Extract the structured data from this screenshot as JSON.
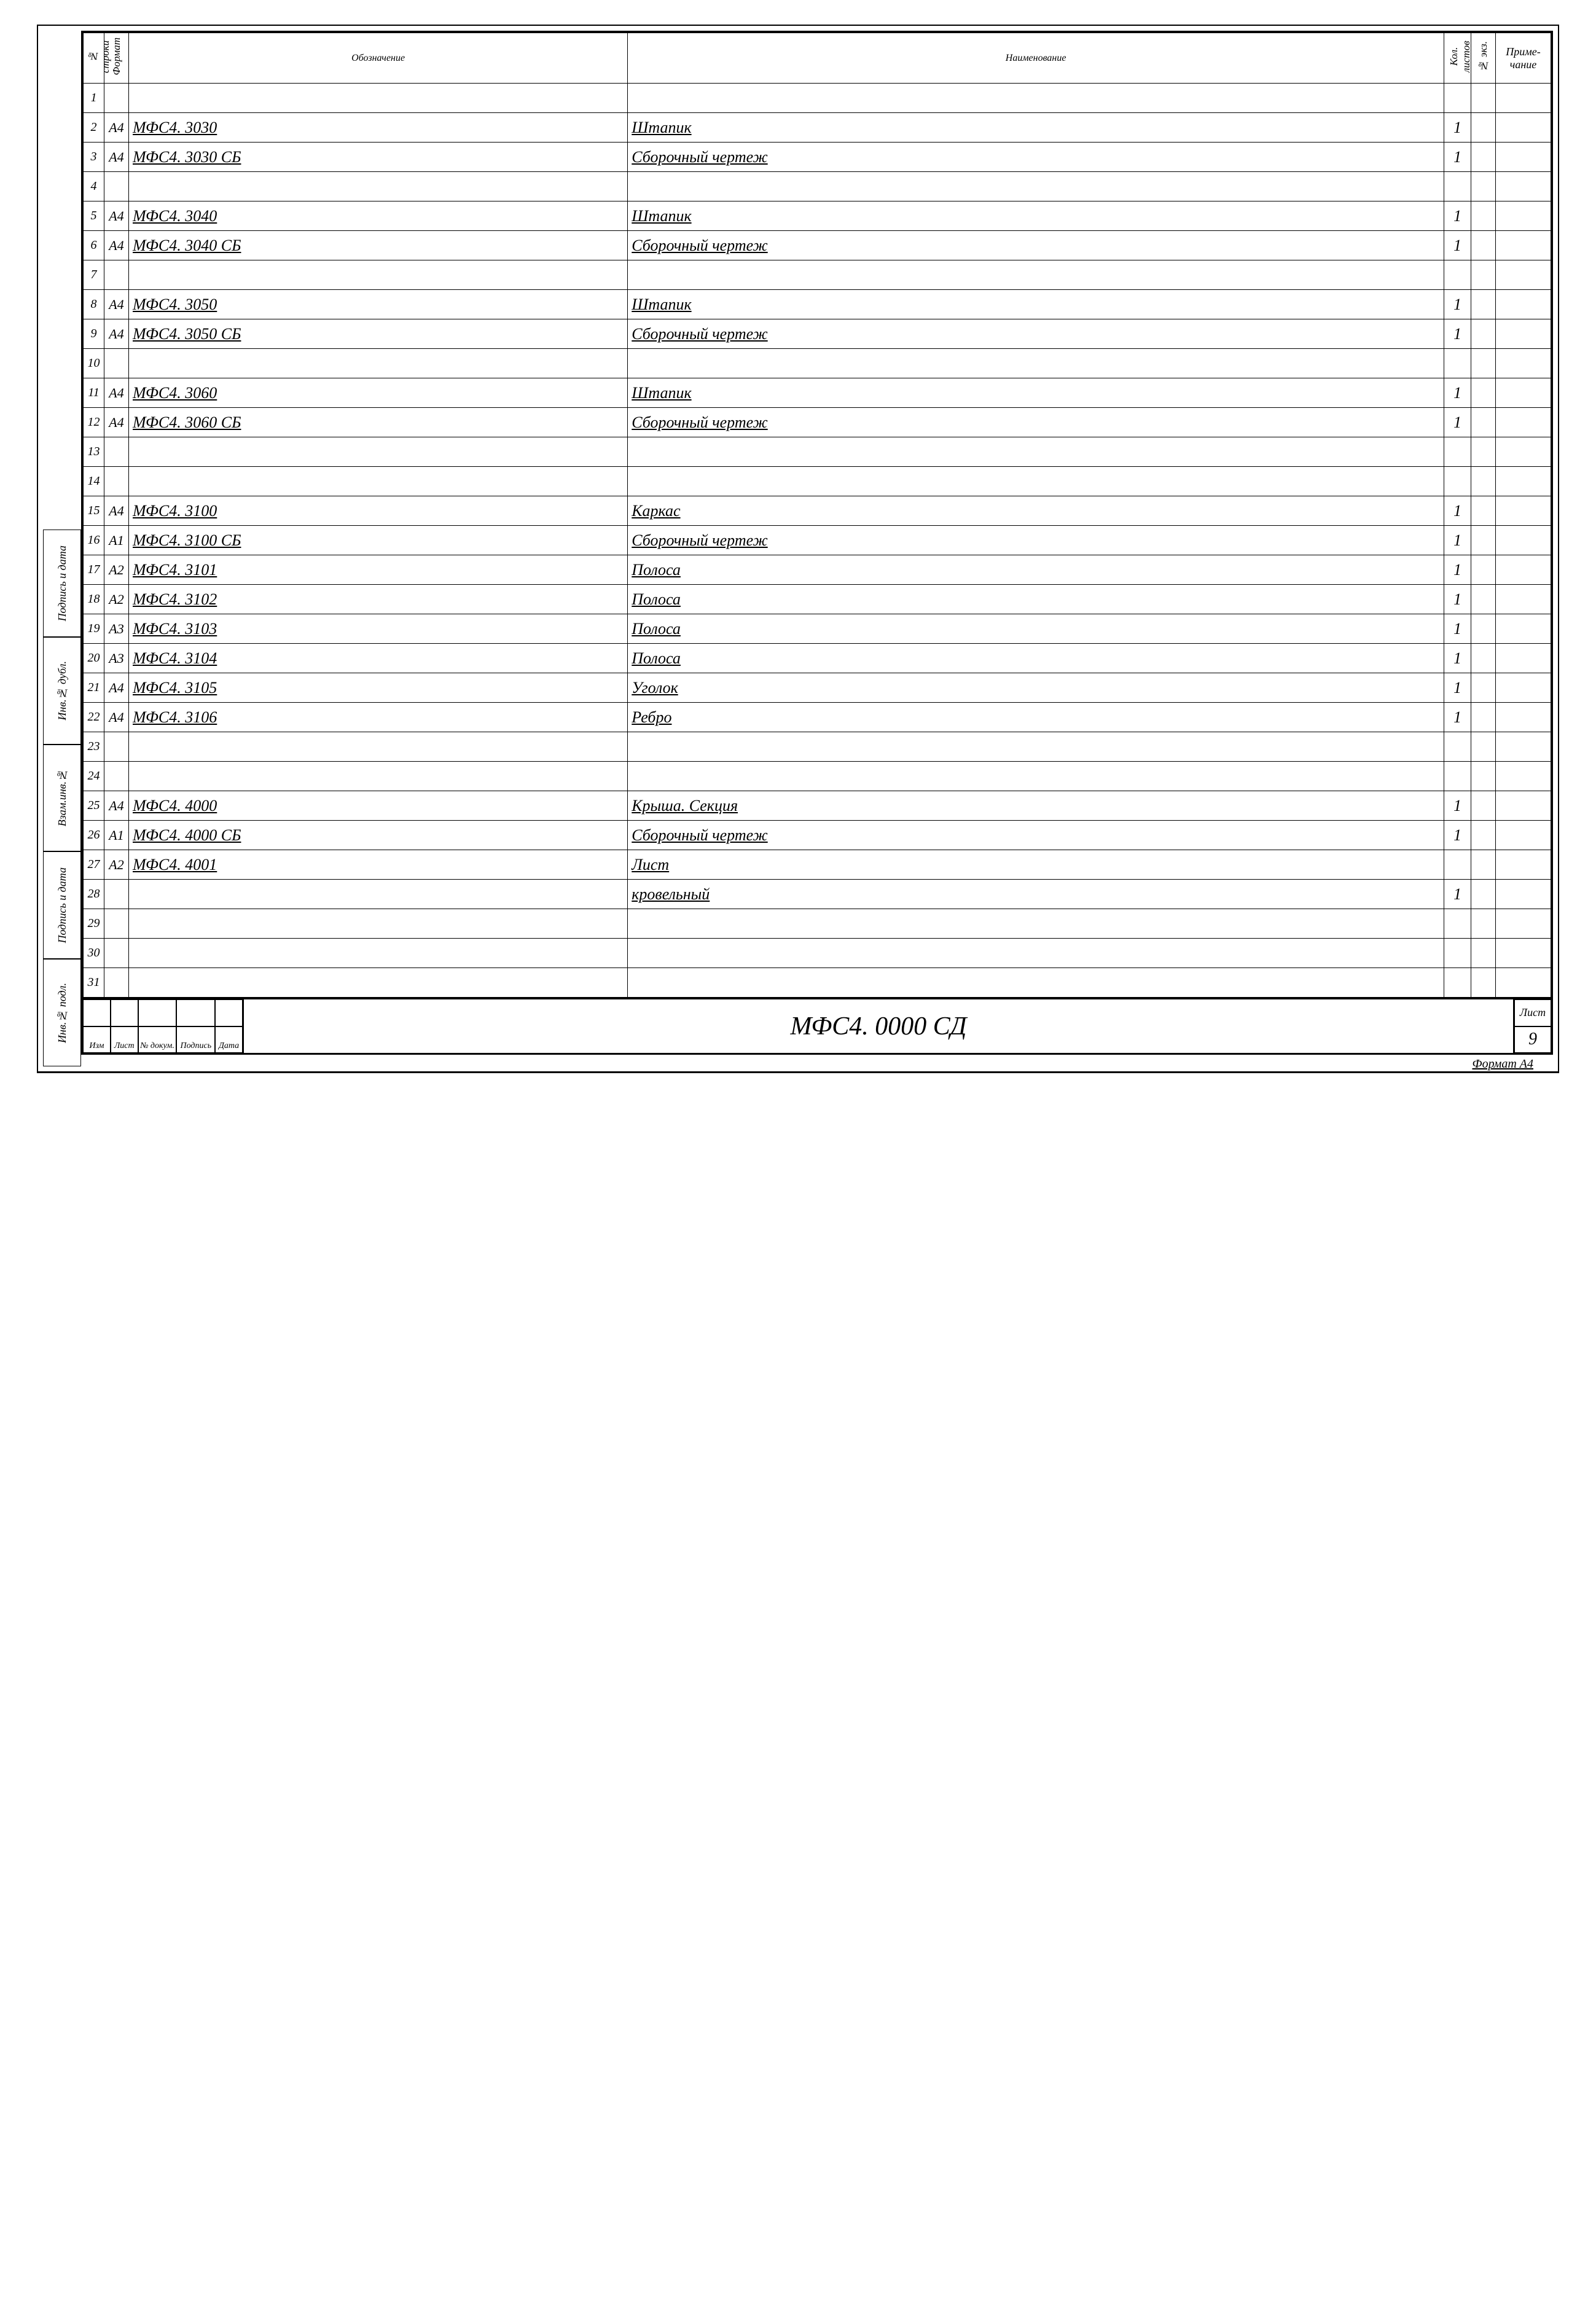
{
  "headers": {
    "row": "№ строки",
    "format": "Формат",
    "designation": "Обозначение",
    "name": "Наименование",
    "qty": "Кол. листов",
    "ekz": "№ экз.",
    "note": "Приме-чание"
  },
  "rows": [
    {
      "n": "1",
      "fmt": "",
      "des": "",
      "nm": "",
      "qty": ""
    },
    {
      "n": "2",
      "fmt": "А4",
      "des": "МФС4. 3030",
      "nm": "Штапик",
      "qty": "1"
    },
    {
      "n": "3",
      "fmt": "А4",
      "des": "МФС4. 3030 СБ",
      "nm": "Сборочный чертеж",
      "qty": "1"
    },
    {
      "n": "4",
      "fmt": "",
      "des": "",
      "nm": "",
      "qty": ""
    },
    {
      "n": "5",
      "fmt": "А4",
      "des": "МФС4. 3040",
      "nm": "Штапик",
      "qty": "1"
    },
    {
      "n": "6",
      "fmt": "А4",
      "des": "МФС4. 3040 СБ",
      "nm": "Сборочный чертеж",
      "qty": "1"
    },
    {
      "n": "7",
      "fmt": "",
      "des": "",
      "nm": "",
      "qty": ""
    },
    {
      "n": "8",
      "fmt": "А4",
      "des": "МФС4. 3050",
      "nm": "Штапик",
      "qty": "1"
    },
    {
      "n": "9",
      "fmt": "А4",
      "des": "МФС4. 3050 СБ",
      "nm": "Сборочный чертеж",
      "qty": "1"
    },
    {
      "n": "10",
      "fmt": "",
      "des": "",
      "nm": "",
      "qty": ""
    },
    {
      "n": "11",
      "fmt": "А4",
      "des": "МФС4. 3060",
      "nm": "Штапик",
      "qty": "1"
    },
    {
      "n": "12",
      "fmt": "А4",
      "des": "МФС4. 3060 СБ",
      "nm": "Сборочный чертеж",
      "qty": "1"
    },
    {
      "n": "13",
      "fmt": "",
      "des": "",
      "nm": "",
      "qty": ""
    },
    {
      "n": "14",
      "fmt": "",
      "des": "",
      "nm": "",
      "qty": ""
    },
    {
      "n": "15",
      "fmt": "А4",
      "des": "МФС4. 3100",
      "nm": "Каркас",
      "qty": "1"
    },
    {
      "n": "16",
      "fmt": "А1",
      "des": "МФС4. 3100 СБ",
      "nm": "Сборочный чертеж",
      "qty": "1"
    },
    {
      "n": "17",
      "fmt": "А2",
      "des": "МФС4. 3101",
      "nm": "Полоса",
      "qty": "1"
    },
    {
      "n": "18",
      "fmt": "А2",
      "des": "МФС4. 3102",
      "nm": "Полоса",
      "qty": "1"
    },
    {
      "n": "19",
      "fmt": "А3",
      "des": "МФС4. 3103",
      "nm": "Полоса",
      "qty": "1"
    },
    {
      "n": "20",
      "fmt": "А3",
      "des": "МФС4. 3104",
      "nm": "Полоса",
      "qty": "1"
    },
    {
      "n": "21",
      "fmt": "А4",
      "des": "МФС4. 3105",
      "nm": "Уголок",
      "qty": "1"
    },
    {
      "n": "22",
      "fmt": "А4",
      "des": "МФС4. 3106",
      "nm": "Ребро",
      "qty": "1"
    },
    {
      "n": "23",
      "fmt": "",
      "des": "",
      "nm": "",
      "qty": ""
    },
    {
      "n": "24",
      "fmt": "",
      "des": "",
      "nm": "",
      "qty": ""
    },
    {
      "n": "25",
      "fmt": "А4",
      "des": "МФС4. 4000",
      "nm": "Крыша. Секция",
      "qty": "1"
    },
    {
      "n": "26",
      "fmt": "А1",
      "des": "МФС4. 4000 СБ",
      "nm": "Сборочный чертеж",
      "qty": "1"
    },
    {
      "n": "27",
      "fmt": "А2",
      "des": "МФС4. 4001",
      "nm": "Лист",
      "qty": ""
    },
    {
      "n": "28",
      "fmt": "",
      "des": "",
      "nm": "кровельный",
      "qty": "1"
    },
    {
      "n": "29",
      "fmt": "",
      "des": "",
      "nm": "",
      "qty": ""
    },
    {
      "n": "30",
      "fmt": "",
      "des": "",
      "nm": "",
      "qty": ""
    },
    {
      "n": "31",
      "fmt": "",
      "des": "",
      "nm": "",
      "qty": ""
    }
  ],
  "sidebar": [
    "Подпись и дата",
    "Инв.№ дубл.",
    "Взам.инв.№",
    "Подпись и дата",
    "Инв.№ подл."
  ],
  "titleblock": {
    "cols": [
      "Изм",
      "Лист",
      "№ докум.",
      "Подпись",
      "Дата"
    ],
    "code": "МФС4. 0000 СД",
    "sheet_lbl": "Лист",
    "sheet_no": "9"
  },
  "format_note": "Формат А4"
}
